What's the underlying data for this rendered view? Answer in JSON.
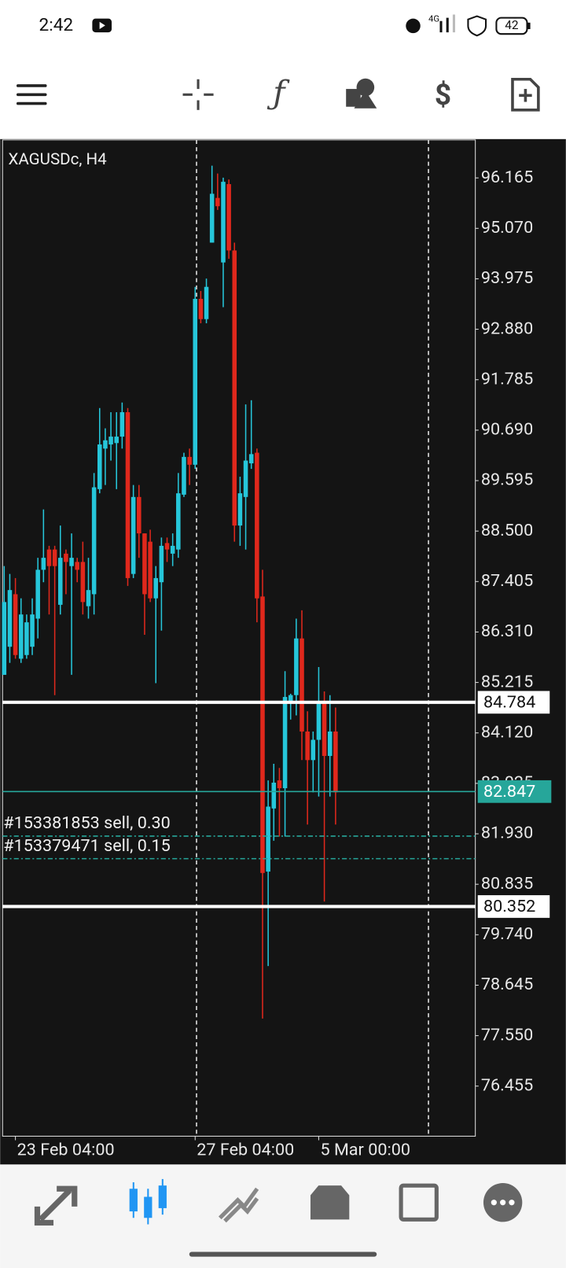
{
  "status_bar": {
    "time": "2:42",
    "battery": "42"
  },
  "chart_data": {
    "type": "candlestick",
    "title": "XAGUSDc, H4",
    "x": [
      null,
      null,
      "23 Feb 04:00",
      null,
      null,
      null,
      null,
      null,
      null,
      null,
      null,
      null,
      null,
      null,
      null,
      null,
      null,
      null,
      null,
      null,
      null,
      null,
      null,
      null,
      null,
      null,
      null,
      null,
      null,
      null,
      null,
      null,
      null,
      null,
      "27 Feb 04:00",
      null,
      null,
      null,
      null,
      null,
      null,
      null,
      null,
      null,
      null,
      null,
      null,
      null,
      null,
      null,
      null,
      null,
      null,
      null,
      null,
      null,
      "5 Mar 00:00",
      null,
      null,
      null
    ],
    "open": [
      85.38,
      85.99,
      87.13,
      85.73,
      85.81,
      85.99,
      86.6,
      87.66,
      88.1,
      88.1,
      86.9,
      88.01,
      87.74,
      87.83,
      87.83,
      86.87,
      87.13,
      89.41,
      90.29,
      90.38,
      90.41,
      90.55,
      91.08,
      87.57,
      89.24,
      88.45,
      88.27,
      87.04,
      87.39,
      88.24,
      88.01,
      88.1,
      89.29,
      90.11,
      89.94,
      93.54,
      93.1,
      94.76,
      95.73,
      94.33,
      96.03,
      94.59,
      88.62,
      89.24,
      89.97,
      90.2,
      87.08,
      81.11,
      82.48,
      83.09,
      82.92,
      84.76,
      84.94,
      86.17,
      84.15,
      83.53,
      83.97,
      84.8,
      83.62,
      84.15
    ],
    "high": [
      87.74,
      87.57,
      87.48,
      87.04,
      86.69,
      87.04,
      87.92,
      88.97,
      88.18,
      88.18,
      88.62,
      88.1,
      88.45,
      87.92,
      88.27,
      87.92,
      89.76,
      91.17,
      90.73,
      91.08,
      91.08,
      91.29,
      91.17,
      89.5,
      89.5,
      88.45,
      88.53,
      87.74,
      88.36,
      88.36,
      88.45,
      89.76,
      90.2,
      90.29,
      93.8,
      93.71,
      93.98,
      96.43,
      96.26,
      96.17,
      96.13,
      94.76,
      89.68,
      91.25,
      91.34,
      90.29,
      87.66,
      83.09,
      83.45,
      83.36,
      85.46,
      84.97,
      86.6,
      86.78,
      84.59,
      84.15,
      85.55,
      85.02,
      84.94,
      84.67
    ],
    "low": [
      85.38,
      85.64,
      85.73,
      85.64,
      85.73,
      85.81,
      86.17,
      87.39,
      86.69,
      84.94,
      86.69,
      87.13,
      85.38,
      87.39,
      86.69,
      86.6,
      86.69,
      89.32,
      89.5,
      90.03,
      89.41,
      90.29,
      87.31,
      87.48,
      87.92,
      86.25,
      86.96,
      85.2,
      86.34,
      87.83,
      87.74,
      87.92,
      89.24,
      89.5,
      89.85,
      93.01,
      93.01,
      94.76,
      95.47,
      93.36,
      94.41,
      88.27,
      88.18,
      88.1,
      89.85,
      86.52,
      77.92,
      79.06,
      81.78,
      81.87,
      81.87,
      84.41,
      84.5,
      83.53,
      82.13,
      82.83,
      82.74,
      80.46,
      82.74,
      82.13
    ],
    "close": [
      86.96,
      87.22,
      85.81,
      86.69,
      86.52,
      86.69,
      87.66,
      87.92,
      87.74,
      87.74,
      87.92,
      87.83,
      87.92,
      87.66,
      86.96,
      87.22,
      89.45,
      90.38,
      90.47,
      90.55,
      90.55,
      91.08,
      87.48,
      89.24,
      88.45,
      87.13,
      87.04,
      87.48,
      88.18,
      88.1,
      88.18,
      89.32,
      90.11,
      89.94,
      93.54,
      93.1,
      93.8,
      95.82,
      95.55,
      96.08,
      94.59,
      88.62,
      89.32,
      90.03,
      90.17,
      87.04,
      81.08,
      82.52,
      83.04,
      82.92,
      84.9,
      84.94,
      86.17,
      84.15,
      83.53,
      83.97,
      84.8,
      83.62,
      84.15,
      82.83
    ],
    "up_color": "#26c6da",
    "down_color": "#e0281c",
    "ylim": [
      75.368,
      97.007
    ],
    "yticks": [
      {
        "value": 96.165,
        "label": "96.165"
      },
      {
        "value": 95.07,
        "label": "95.070"
      },
      {
        "value": 93.975,
        "label": "93.975"
      },
      {
        "value": 92.88,
        "label": "92.880"
      },
      {
        "value": 91.785,
        "label": "91.785"
      },
      {
        "value": 90.69,
        "label": "90.690"
      },
      {
        "value": 89.595,
        "label": "89.595"
      },
      {
        "value": 88.5,
        "label": "88.500"
      },
      {
        "value": 87.405,
        "label": "87.405"
      },
      {
        "value": 86.31,
        "label": "86.310"
      },
      {
        "value": 85.215,
        "label": "85.215"
      },
      {
        "value": 84.12,
        "label": "84.120"
      },
      {
        "value": 83.025,
        "label": "83.025"
      },
      {
        "value": 81.93,
        "label": "81.930"
      },
      {
        "value": 80.835,
        "label": "80.835"
      },
      {
        "value": 79.74,
        "label": "79.740"
      },
      {
        "value": 78.645,
        "label": "78.645"
      },
      {
        "value": 77.55,
        "label": "77.550"
      },
      {
        "value": 76.455,
        "label": "76.455"
      }
    ],
    "levels": [
      84.784,
      80.352
    ],
    "price": 82.847,
    "price_color": "#26a69a",
    "orders": [
      {
        "label": "#153381853 sell, 0.30",
        "price": 81.88
      },
      {
        "label": "#153379471 sell, 0.15",
        "price": 81.39
      }
    ]
  }
}
